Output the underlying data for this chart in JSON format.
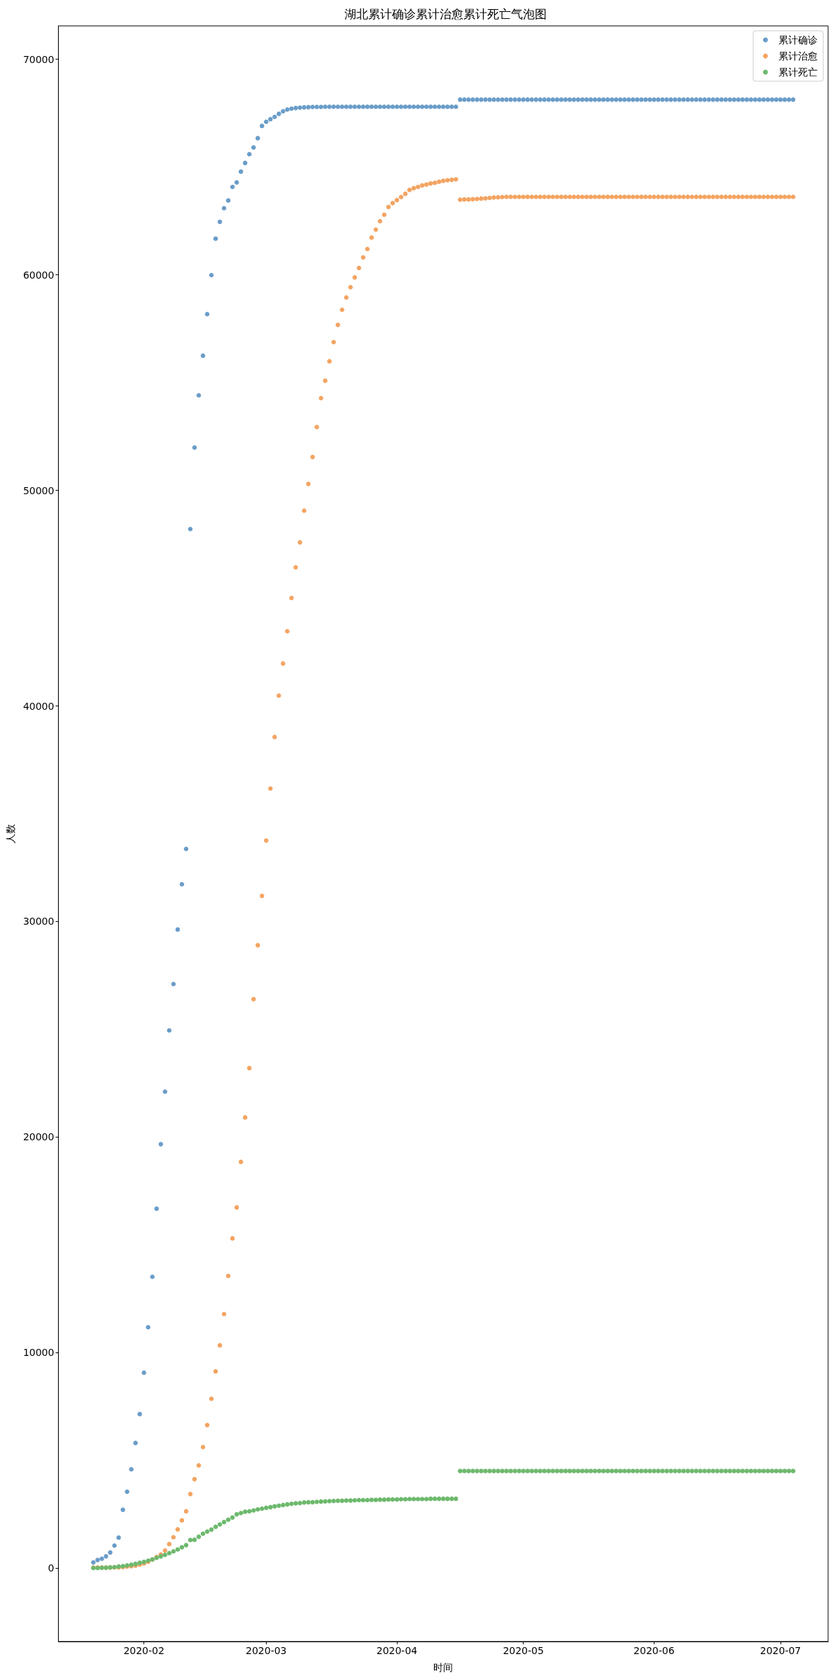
{
  "chart_data": {
    "type": "scatter",
    "title": "湖北累计确诊累计治愈累计死亡气泡图",
    "xlabel": "时间",
    "ylabel": "人数",
    "x": [
      "2020-01-20",
      "2020-01-21",
      "2020-01-22",
      "2020-01-23",
      "2020-01-24",
      "2020-01-25",
      "2020-01-26",
      "2020-01-27",
      "2020-01-28",
      "2020-01-29",
      "2020-01-30",
      "2020-01-31",
      "2020-02-01",
      "2020-02-02",
      "2020-02-03",
      "2020-02-04",
      "2020-02-05",
      "2020-02-06",
      "2020-02-07",
      "2020-02-08",
      "2020-02-09",
      "2020-02-10",
      "2020-02-11",
      "2020-02-12",
      "2020-02-13",
      "2020-02-14",
      "2020-02-15",
      "2020-02-16",
      "2020-02-17",
      "2020-02-18",
      "2020-02-19",
      "2020-02-20",
      "2020-02-21",
      "2020-02-22",
      "2020-02-23",
      "2020-02-24",
      "2020-02-25",
      "2020-02-26",
      "2020-02-27",
      "2020-02-28",
      "2020-02-29",
      "2020-03-01",
      "2020-03-02",
      "2020-03-03",
      "2020-03-04",
      "2020-03-05",
      "2020-03-06",
      "2020-03-07",
      "2020-03-08",
      "2020-03-09",
      "2020-03-10",
      "2020-03-11",
      "2020-03-12",
      "2020-03-13",
      "2020-03-14",
      "2020-03-15",
      "2020-03-16",
      "2020-03-17",
      "2020-03-18",
      "2020-03-19",
      "2020-03-20",
      "2020-03-21",
      "2020-03-22",
      "2020-03-23",
      "2020-03-24",
      "2020-03-25",
      "2020-03-26",
      "2020-03-27",
      "2020-03-28",
      "2020-03-29",
      "2020-03-30",
      "2020-03-31",
      "2020-04-01",
      "2020-04-02",
      "2020-04-03",
      "2020-04-04",
      "2020-04-05",
      "2020-04-06",
      "2020-04-07",
      "2020-04-08",
      "2020-04-09",
      "2020-04-10",
      "2020-04-11",
      "2020-04-12",
      "2020-04-13",
      "2020-04-14",
      "2020-04-15",
      "2020-04-16",
      "2020-04-17",
      "2020-04-18",
      "2020-04-19",
      "2020-04-20",
      "2020-04-21",
      "2020-04-22",
      "2020-04-23",
      "2020-04-24",
      "2020-04-25",
      "2020-04-26",
      "2020-04-27",
      "2020-04-28",
      "2020-04-29",
      "2020-04-30",
      "2020-05-01",
      "2020-05-02",
      "2020-05-03",
      "2020-05-04",
      "2020-05-05",
      "2020-05-06",
      "2020-05-07",
      "2020-05-08",
      "2020-05-09",
      "2020-05-10",
      "2020-05-11",
      "2020-05-12",
      "2020-05-13",
      "2020-05-14",
      "2020-05-15",
      "2020-05-16",
      "2020-05-17",
      "2020-05-18",
      "2020-05-19",
      "2020-05-20",
      "2020-05-21",
      "2020-05-22",
      "2020-05-23",
      "2020-05-24",
      "2020-05-25",
      "2020-05-26",
      "2020-05-27",
      "2020-05-28",
      "2020-05-29",
      "2020-05-30",
      "2020-05-31",
      "2020-06-01",
      "2020-06-02",
      "2020-06-03",
      "2020-06-04",
      "2020-06-05",
      "2020-06-06",
      "2020-06-07",
      "2020-06-08",
      "2020-06-09",
      "2020-06-10",
      "2020-06-11",
      "2020-06-12",
      "2020-06-13",
      "2020-06-14",
      "2020-06-15",
      "2020-06-16",
      "2020-06-17",
      "2020-06-18",
      "2020-06-19",
      "2020-06-20",
      "2020-06-21",
      "2020-06-22",
      "2020-06-23",
      "2020-06-24",
      "2020-06-25",
      "2020-06-26",
      "2020-06-27",
      "2020-06-28",
      "2020-06-29",
      "2020-06-30",
      "2020-07-01",
      "2020-07-02",
      "2020-07-03",
      "2020-07-04"
    ],
    "series": [
      {
        "name": "累计确诊",
        "color": "#6a9dc9",
        "values": [
          270,
          380,
          440,
          550,
          730,
          1050,
          1420,
          2710,
          3550,
          4590,
          5810,
          7150,
          9070,
          11180,
          13520,
          16680,
          19670,
          22110,
          24950,
          27100,
          29630,
          31730,
          33370,
          48210,
          51990,
          54410,
          56250,
          58180,
          59990,
          61680,
          62460,
          63090,
          63450,
          64080,
          64290,
          64790,
          65190,
          65600,
          65910,
          66340,
          66910,
          67100,
          67220,
          67330,
          67470,
          67590,
          67670,
          67710,
          67740,
          67760,
          67770,
          67780,
          67790,
          67790,
          67790,
          67800,
          67800,
          67800,
          67800,
          67800,
          67800,
          67800,
          67800,
          67800,
          67800,
          67800,
          67800,
          67800,
          67800,
          67800,
          67800,
          67800,
          67800,
          67800,
          67800,
          67800,
          67800,
          67800,
          67800,
          67800,
          67800,
          67800,
          67800,
          67800,
          67800,
          67800,
          67800,
          68130,
          68130,
          68130,
          68130,
          68130,
          68130,
          68130,
          68130,
          68130,
          68130,
          68130,
          68130,
          68130,
          68130,
          68130,
          68130,
          68130,
          68130,
          68130,
          68130,
          68130,
          68130,
          68130,
          68130,
          68130,
          68130,
          68130,
          68130,
          68130,
          68130,
          68130,
          68130,
          68130,
          68130,
          68130,
          68130,
          68130,
          68130,
          68130,
          68130,
          68130,
          68130,
          68130,
          68130,
          68130,
          68130,
          68130,
          68130,
          68130,
          68130,
          68130,
          68130,
          68130,
          68130,
          68130,
          68130,
          68130,
          68130,
          68130,
          68130,
          68130,
          68130,
          68130,
          68130,
          68130,
          68130,
          68130,
          68130,
          68130,
          68130,
          68130,
          68130,
          68130,
          68130,
          68130,
          68130,
          68130,
          68130,
          68130,
          68130
        ]
      },
      {
        "name": "累计治愈",
        "color": "#f3a462",
        "values": [
          30,
          30,
          30,
          30,
          30,
          40,
          40,
          50,
          80,
          90,
          120,
          170,
          220,
          300,
          400,
          520,
          630,
          820,
          1120,
          1440,
          1800,
          2220,
          2640,
          3440,
          4130,
          4770,
          5620,
          6640,
          7860,
          9130,
          10340,
          11790,
          13560,
          15300,
          16740,
          18850,
          20910,
          23200,
          26400,
          28900,
          31190,
          33760,
          36170,
          38560,
          40480,
          41970,
          43470,
          45010,
          46430,
          47590,
          49060,
          50300,
          51550,
          52940,
          54280,
          55090,
          55990,
          56880,
          57680,
          58380,
          58950,
          59430,
          59880,
          60320,
          60810,
          61200,
          61730,
          62100,
          62490,
          62790,
          63150,
          63330,
          63470,
          63610,
          63760,
          63940,
          64020,
          64080,
          64150,
          64190,
          64240,
          64270,
          64320,
          64360,
          64390,
          64410,
          64430,
          63490,
          63500,
          63500,
          63510,
          63520,
          63540,
          63550,
          63570,
          63590,
          63600,
          63610,
          63620,
          63620,
          63620,
          63620,
          63620,
          63620,
          63620,
          63620,
          63620,
          63620,
          63620,
          63620,
          63620,
          63620,
          63620,
          63620,
          63620,
          63620,
          63620,
          63620,
          63620,
          63620,
          63620,
          63620,
          63620,
          63620,
          63620,
          63620,
          63620,
          63620,
          63620,
          63620,
          63620,
          63620,
          63620,
          63620,
          63620,
          63620,
          63620,
          63620,
          63620,
          63620,
          63620,
          63620,
          63620,
          63620,
          63620,
          63620,
          63620,
          63620,
          63620,
          63620,
          63620,
          63620,
          63620,
          63620,
          63620,
          63620,
          63620,
          63620,
          63620,
          63620,
          63620,
          63620,
          63620,
          63620,
          63620,
          63620,
          63620
        ]
      },
      {
        "name": "累计死亡",
        "color": "#6db96d",
        "values": [
          10,
          10,
          20,
          20,
          40,
          50,
          80,
          100,
          130,
          160,
          200,
          250,
          290,
          350,
          410,
          480,
          550,
          620,
          700,
          780,
          870,
          970,
          1070,
          1310,
          1320,
          1460,
          1600,
          1700,
          1790,
          1920,
          2030,
          2140,
          2250,
          2350,
          2500,
          2560,
          2620,
          2640,
          2680,
          2730,
          2760,
          2800,
          2830,
          2870,
          2900,
          2930,
          2960,
          2990,
          3010,
          3020,
          3050,
          3060,
          3060,
          3080,
          3090,
          3100,
          3110,
          3120,
          3130,
          3130,
          3140,
          3140,
          3150,
          3160,
          3160,
          3160,
          3170,
          3170,
          3180,
          3180,
          3190,
          3190,
          3190,
          3200,
          3200,
          3210,
          3210,
          3210,
          3210,
          3210,
          3220,
          3220,
          3220,
          3220,
          3220,
          3220,
          3220,
          4510,
          4510,
          4510,
          4510,
          4510,
          4510,
          4510,
          4510,
          4510,
          4510,
          4510,
          4510,
          4510,
          4510,
          4510,
          4510,
          4510,
          4510,
          4510,
          4510,
          4510,
          4510,
          4510,
          4510,
          4510,
          4510,
          4510,
          4510,
          4510,
          4510,
          4510,
          4510,
          4510,
          4510,
          4510,
          4510,
          4510,
          4510,
          4510,
          4510,
          4510,
          4510,
          4510,
          4510,
          4510,
          4510,
          4510,
          4510,
          4510,
          4510,
          4510,
          4510,
          4510,
          4510,
          4510,
          4510,
          4510,
          4510,
          4510,
          4510,
          4510,
          4510,
          4510,
          4510,
          4510,
          4510,
          4510,
          4510,
          4510,
          4510,
          4510,
          4510,
          4510,
          4510,
          4510,
          4510,
          4510,
          4510,
          4510,
          4510
        ]
      }
    ],
    "xlim": [
      "2020-01-11T17:00",
      "2020-07-12T07:00"
    ],
    "xticks": [
      "2020-02",
      "2020-03",
      "2020-04",
      "2020-05",
      "2020-06",
      "2020-07"
    ],
    "ylim": [
      -3400,
      71550
    ],
    "yticks": [
      0,
      10000,
      20000,
      30000,
      40000,
      50000,
      60000,
      70000
    ],
    "legend": "top right",
    "marker": "circle"
  }
}
